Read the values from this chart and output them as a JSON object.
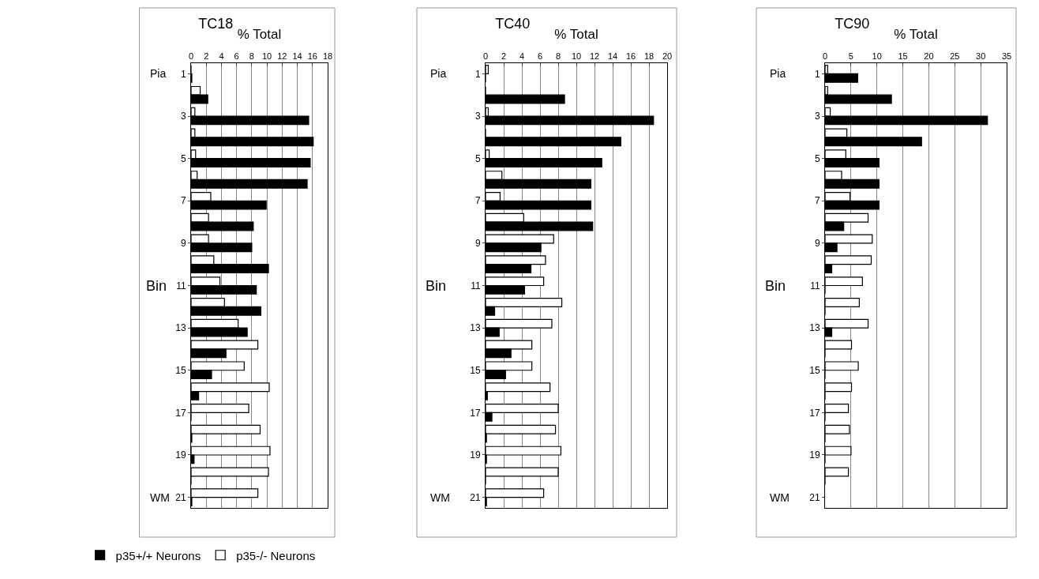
{
  "chart_data": [
    {
      "type": "bar",
      "orientation": "horizontal",
      "title": "TC18",
      "xlabel": "% Total",
      "ylabel": "Bin",
      "categories": [
        "1",
        null,
        "3",
        null,
        "5",
        null,
        "7",
        null,
        "9",
        null,
        "11",
        null,
        "13",
        null,
        "15",
        null,
        "17",
        null,
        "19",
        null,
        "21"
      ],
      "series": [
        {
          "name": "p35-/- Neurons",
          "color": "#ffffff",
          "values": [
            0,
            1.2,
            0.5,
            0.5,
            0.6,
            0.8,
            2.6,
            2.3,
            2.3,
            3.0,
            3.8,
            4.4,
            6.2,
            8.8,
            7.0,
            10.3,
            7.6,
            9.1,
            10.4,
            10.2,
            8.8
          ]
        },
        {
          "name": "p35+/+ Neurons",
          "color": "#000000",
          "values": [
            0.1,
            2.2,
            15.5,
            16.1,
            15.7,
            15.3,
            9.9,
            8.2,
            8.0,
            10.2,
            8.6,
            9.2,
            7.4,
            4.6,
            2.7,
            1.0,
            0,
            0.1,
            0.4,
            0,
            0.1
          ]
        }
      ],
      "xlim": [
        0,
        18
      ],
      "xticks": [
        0,
        2,
        4,
        6,
        8,
        10,
        12,
        14,
        16,
        18
      ],
      "grid": "x",
      "legend": "bottom",
      "annotations": [
        "Pia",
        "WM"
      ]
    },
    {
      "type": "bar",
      "orientation": "horizontal",
      "title": "TC40",
      "xlabel": "% Total",
      "ylabel": "Bin",
      "categories": [
        "1",
        null,
        "3",
        null,
        "5",
        null,
        "7",
        null,
        "9",
        null,
        "11",
        null,
        "13",
        null,
        "15",
        null,
        "17",
        null,
        "19",
        null,
        "21"
      ],
      "series": [
        {
          "color": "#ffffff",
          "values": [
            0.3,
            0,
            0.3,
            0,
            0.4,
            1.8,
            1.6,
            4.2,
            7.5,
            6.6,
            6.4,
            8.4,
            7.3,
            5.1,
            5.1,
            7.1,
            8.0,
            7.7,
            8.3,
            8.0,
            6.4
          ]
        },
        {
          "color": "#000000",
          "values": [
            0,
            8.7,
            18.5,
            14.9,
            12.8,
            11.6,
            11.6,
            11.8,
            6.1,
            5.0,
            4.3,
            1.0,
            1.5,
            2.8,
            2.2,
            0.2,
            0.7,
            0.1,
            0.1,
            0,
            0.1
          ]
        }
      ],
      "xlim": [
        0,
        20
      ],
      "xticks": [
        0,
        2,
        4,
        6,
        8,
        10,
        12,
        14,
        16,
        18,
        20
      ],
      "grid": "x",
      "annotations": [
        "Pia",
        "WM"
      ]
    },
    {
      "type": "bar",
      "orientation": "horizontal",
      "title": "TC90",
      "xlabel": "% Total",
      "ylabel": "Bin",
      "categories": [
        "1",
        null,
        "3",
        null,
        "5",
        null,
        "7",
        null,
        "9",
        null,
        "11",
        null,
        "13",
        null,
        "15",
        null,
        "17",
        null,
        "19",
        null,
        "21"
      ],
      "series": [
        {
          "color": "#ffffff",
          "values": [
            0.5,
            0.5,
            1.0,
            4.2,
            4.0,
            3.2,
            4.8,
            8.3,
            9.1,
            8.9,
            7.2,
            6.6,
            8.3,
            5.1,
            6.4,
            5.1,
            4.5,
            4.7,
            5.0,
            4.5,
            null
          ]
        },
        {
          "color": "#000000",
          "values": [
            6.3,
            12.8,
            31.3,
            18.6,
            10.4,
            10.4,
            10.4,
            3.6,
            2.3,
            1.3,
            0,
            0,
            1.3,
            0,
            0,
            0,
            0,
            0,
            0,
            0,
            null
          ]
        }
      ],
      "xlim": [
        0,
        35
      ],
      "xticks": [
        0,
        5,
        10,
        15,
        20,
        25,
        30,
        35
      ],
      "grid": "x",
      "annotations": [
        "Pia",
        "WM"
      ]
    }
  ]
}
